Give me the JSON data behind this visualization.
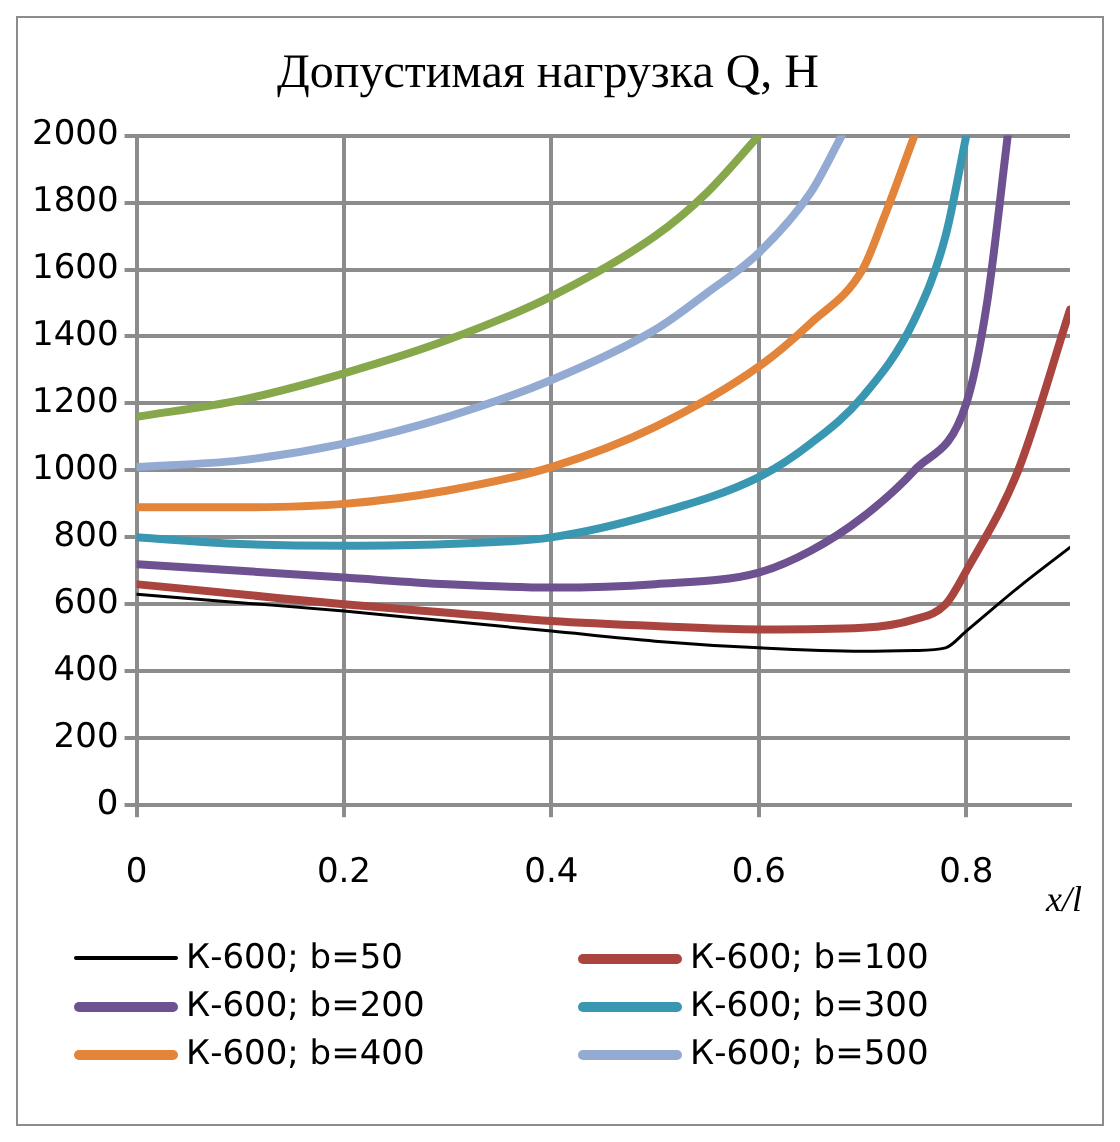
{
  "chart_data": {
    "type": "line",
    "title": "Допустимая нагрузка Q, Н",
    "xlabel": "x/l",
    "xlim": [
      0,
      0.9
    ],
    "xticks": [
      0,
      0.2,
      0.4,
      0.6,
      0.8
    ],
    "ylim": [
      0,
      2000
    ],
    "yticks": [
      0,
      200,
      400,
      600,
      800,
      1000,
      1200,
      1400,
      1600,
      1800,
      2000
    ],
    "grid": true,
    "legend": "bottom",
    "marker": "none",
    "line_style": "solid",
    "series": [
      {
        "name": "К-600; b=50",
        "color": "#000000",
        "x": [
          0,
          0.1,
          0.2,
          0.3,
          0.4,
          0.5,
          0.6,
          0.7,
          0.75,
          0.78,
          0.8,
          0.85,
          0.9
        ],
        "values": [
          630,
          605,
          580,
          550,
          520,
          490,
          470,
          460,
          462,
          470,
          520,
          650,
          770
        ]
      },
      {
        "name": "К-600; b=100",
        "color": "#a9443f",
        "x": [
          0,
          0.1,
          0.2,
          0.3,
          0.4,
          0.5,
          0.6,
          0.7,
          0.75,
          0.78,
          0.8,
          0.85,
          0.9
        ],
        "values": [
          660,
          630,
          600,
          575,
          550,
          535,
          525,
          530,
          555,
          600,
          700,
          1000,
          1480
        ]
      },
      {
        "name": "К-600; b=200",
        "color": "#6d5191",
        "x": [
          0,
          0.1,
          0.2,
          0.3,
          0.4,
          0.5,
          0.6,
          0.65,
          0.7,
          0.75,
          0.8,
          0.82,
          0.84
        ],
        "values": [
          720,
          700,
          680,
          660,
          650,
          660,
          695,
          760,
          860,
          1000,
          1200,
          1500,
          2000
        ]
      },
      {
        "name": "К-600; b=300",
        "color": "#3a97b1",
        "x": [
          0,
          0.1,
          0.2,
          0.3,
          0.4,
          0.5,
          0.6,
          0.65,
          0.7,
          0.75,
          0.78,
          0.8
        ],
        "values": [
          800,
          780,
          775,
          780,
          800,
          870,
          980,
          1080,
          1220,
          1450,
          1700,
          2000
        ]
      },
      {
        "name": "К-600; b=400",
        "color": "#e2843a",
        "x": [
          0,
          0.1,
          0.2,
          0.3,
          0.4,
          0.5,
          0.6,
          0.65,
          0.7,
          0.72,
          0.75
        ],
        "values": [
          890,
          890,
          900,
          940,
          1010,
          1130,
          1310,
          1440,
          1600,
          1750,
          2000
        ]
      },
      {
        "name": "К-600; b=500",
        "color": "#93aad2",
        "x": [
          0,
          0.1,
          0.2,
          0.3,
          0.4,
          0.5,
          0.55,
          0.6,
          0.65,
          0.68
        ],
        "values": [
          1010,
          1030,
          1080,
          1160,
          1270,
          1420,
          1530,
          1650,
          1830,
          2000
        ]
      },
      {
        "color": "#86a74a",
        "x": [
          0,
          0.1,
          0.2,
          0.3,
          0.4,
          0.5,
          0.55,
          0.6
        ],
        "values": [
          1160,
          1210,
          1290,
          1390,
          1520,
          1700,
          1830,
          2000
        ]
      }
    ]
  }
}
